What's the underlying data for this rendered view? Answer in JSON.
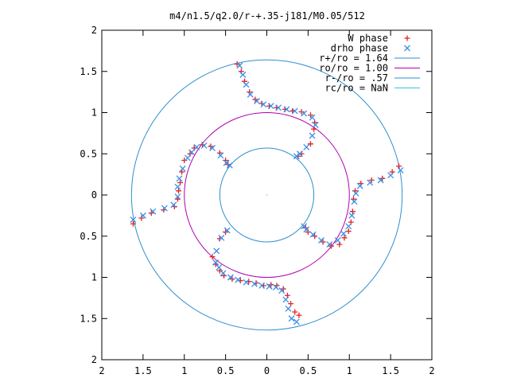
{
  "chart_data": {
    "type": "scatter",
    "title": "m4/n1.5/q2.0/r-+.35-j181/M0.05/512",
    "xlim": [
      -2,
      2
    ],
    "ylim": [
      -2,
      2
    ],
    "x_ticks": [
      -2,
      -1.5,
      -1,
      -0.5,
      0,
      0.5,
      1,
      1.5,
      2
    ],
    "x_tick_labels": [
      "2",
      "1.5",
      "1",
      "0.5",
      "0",
      "0.5",
      "1",
      "1.5",
      "2"
    ],
    "y_ticks": [
      2,
      1.5,
      1,
      0.5,
      0,
      -0.5,
      -1,
      -1.5,
      -2
    ],
    "y_tick_labels": [
      "2",
      "1.5",
      "1",
      "0.5",
      "0",
      "0.5",
      "1",
      "1.5",
      "2"
    ],
    "legend_position": "top-right",
    "colors": {
      "w_phase": "#e8201f",
      "drho_phase": "#3a8fe8",
      "r_plus": "#2f8fd0",
      "ro": "#b000b0",
      "r_minus": "#2f8fd0",
      "rc": "#30c8d8"
    },
    "circles": [
      {
        "label": "r+/ro = 1.64",
        "r": 1.64,
        "color_key": "r_plus"
      },
      {
        "label": "ro/ro = 1.00",
        "r": 1.0,
        "color_key": "ro"
      },
      {
        "label": "r-/ro = .57",
        "r": 0.57,
        "color_key": "r_minus"
      },
      {
        "label": "rc/ro = NaN",
        "r": null,
        "color_key": "rc"
      }
    ],
    "series": [
      {
        "name": "W phase",
        "marker": "plus",
        "color_key": "w_phase",
        "points": [
          [
            0.39,
            -1.46
          ],
          [
            0.34,
            -1.42
          ],
          [
            0.29,
            -1.32
          ],
          [
            0.25,
            -1.22
          ],
          [
            0.2,
            -1.14
          ],
          [
            0.12,
            -1.1
          ],
          [
            0.05,
            -1.09
          ],
          [
            -0.04,
            -1.1
          ],
          [
            -0.13,
            -1.07
          ],
          [
            -0.22,
            -1.05
          ],
          [
            -0.32,
            -1.04
          ],
          [
            -0.42,
            -1.02
          ],
          [
            -0.52,
            -0.98
          ],
          [
            -0.57,
            -0.92
          ],
          [
            -0.62,
            -0.84
          ],
          [
            -0.66,
            -0.75
          ],
          [
            -0.57,
            -0.53
          ],
          [
            -0.5,
            -0.45
          ],
          [
            -1.62,
            -0.35
          ],
          [
            -1.52,
            -0.28
          ],
          [
            -1.4,
            -0.22
          ],
          [
            -1.25,
            -0.18
          ],
          [
            -1.12,
            -0.14
          ],
          [
            -1.08,
            -0.05
          ],
          [
            -1.07,
            0.05
          ],
          [
            -1.05,
            0.15
          ],
          [
            -1.03,
            0.28
          ],
          [
            -1.0,
            0.42
          ],
          [
            -0.93,
            0.5
          ],
          [
            -0.88,
            0.57
          ],
          [
            -0.78,
            0.61
          ],
          [
            -0.68,
            0.59
          ],
          [
            -0.57,
            0.51
          ],
          [
            -0.5,
            0.42
          ],
          [
            -0.47,
            0.37
          ],
          [
            -0.36,
            1.59
          ],
          [
            -0.31,
            1.5
          ],
          [
            -0.27,
            1.38
          ],
          [
            -0.21,
            1.25
          ],
          [
            -0.14,
            1.16
          ],
          [
            -0.06,
            1.11
          ],
          [
            0.03,
            1.08
          ],
          [
            0.12,
            1.06
          ],
          [
            0.22,
            1.04
          ],
          [
            0.31,
            1.02
          ],
          [
            0.42,
            1.01
          ],
          [
            0.53,
            0.97
          ],
          [
            0.58,
            0.88
          ],
          [
            0.57,
            0.8
          ],
          [
            0.53,
            0.62
          ],
          [
            0.42,
            0.5
          ],
          [
            0.38,
            0.47
          ],
          [
            1.6,
            0.35
          ],
          [
            1.52,
            0.28
          ],
          [
            1.4,
            0.2
          ],
          [
            1.27,
            0.18
          ],
          [
            1.14,
            0.14
          ],
          [
            1.07,
            0.05
          ],
          [
            1.05,
            -0.05
          ],
          [
            1.04,
            -0.2
          ],
          [
            1.02,
            -0.33
          ],
          [
            0.99,
            -0.44
          ],
          [
            0.94,
            -0.52
          ],
          [
            0.88,
            -0.6
          ],
          [
            0.78,
            -0.62
          ],
          [
            0.68,
            -0.57
          ],
          [
            0.58,
            -0.5
          ],
          [
            0.5,
            -0.45
          ],
          [
            0.47,
            -0.4
          ]
        ]
      },
      {
        "name": "drho phase",
        "marker": "cross",
        "color_key": "drho_phase",
        "points": [
          [
            0.36,
            -1.54
          ],
          [
            0.3,
            -1.5
          ],
          [
            0.26,
            -1.38
          ],
          [
            0.23,
            -1.27
          ],
          [
            0.18,
            -1.16
          ],
          [
            0.11,
            -1.12
          ],
          [
            0.03,
            -1.11
          ],
          [
            -0.06,
            -1.1
          ],
          [
            -0.15,
            -1.08
          ],
          [
            -0.25,
            -1.06
          ],
          [
            -0.35,
            -1.03
          ],
          [
            -0.44,
            -1.0
          ],
          [
            -0.53,
            -0.95
          ],
          [
            -0.58,
            -0.88
          ],
          [
            -0.62,
            -0.82
          ],
          [
            -0.61,
            -0.68
          ],
          [
            -0.55,
            -0.52
          ],
          [
            -0.48,
            -0.43
          ],
          [
            -1.62,
            -0.3
          ],
          [
            -1.5,
            -0.25
          ],
          [
            -1.38,
            -0.2
          ],
          [
            -1.24,
            -0.16
          ],
          [
            -1.13,
            -0.12
          ],
          [
            -1.08,
            -0.02
          ],
          [
            -1.08,
            0.1
          ],
          [
            -1.06,
            0.2
          ],
          [
            -1.02,
            0.32
          ],
          [
            -0.96,
            0.45
          ],
          [
            -0.91,
            0.52
          ],
          [
            -0.85,
            0.58
          ],
          [
            -0.76,
            0.6
          ],
          [
            -0.66,
            0.57
          ],
          [
            -0.56,
            0.48
          ],
          [
            -0.49,
            0.39
          ],
          [
            -0.45,
            0.36
          ],
          [
            -0.33,
            1.57
          ],
          [
            -0.29,
            1.46
          ],
          [
            -0.25,
            1.34
          ],
          [
            -0.2,
            1.22
          ],
          [
            -0.12,
            1.14
          ],
          [
            -0.04,
            1.1
          ],
          [
            0.05,
            1.08
          ],
          [
            0.14,
            1.06
          ],
          [
            0.24,
            1.04
          ],
          [
            0.34,
            1.02
          ],
          [
            0.45,
            0.99
          ],
          [
            0.55,
            0.94
          ],
          [
            0.59,
            0.85
          ],
          [
            0.55,
            0.72
          ],
          [
            0.48,
            0.58
          ],
          [
            0.4,
            0.5
          ],
          [
            0.36,
            0.47
          ],
          [
            1.62,
            0.3
          ],
          [
            1.5,
            0.24
          ],
          [
            1.38,
            0.18
          ],
          [
            1.25,
            0.15
          ],
          [
            1.13,
            0.11
          ],
          [
            1.08,
            0.02
          ],
          [
            1.06,
            -0.08
          ],
          [
            1.03,
            -0.25
          ],
          [
            0.99,
            -0.38
          ],
          [
            0.93,
            -0.47
          ],
          [
            0.86,
            -0.55
          ],
          [
            0.76,
            -0.6
          ],
          [
            0.66,
            -0.55
          ],
          [
            0.56,
            -0.48
          ],
          [
            0.48,
            -0.42
          ],
          [
            0.45,
            -0.38
          ]
        ]
      }
    ]
  }
}
